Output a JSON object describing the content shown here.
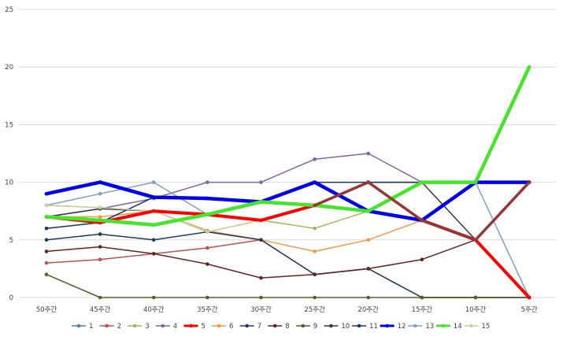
{
  "chart_data": {
    "type": "line",
    "categories": [
      "50주간",
      "45주간",
      "40주간",
      "35주간",
      "30주간",
      "25주간",
      "20주간",
      "15주간",
      "10주간",
      "5주간"
    ],
    "ylim": [
      0,
      25
    ],
    "yticks": [
      0,
      5,
      10,
      15,
      20,
      25
    ],
    "grid": true,
    "legend_position": "bottom",
    "series": [
      {
        "name": "1",
        "color": "#4f81bd",
        "width": 1.5,
        "values": [
          9,
          10,
          8.7,
          8.6,
          8.3,
          10,
          7.5,
          6.7,
          5,
          0
        ]
      },
      {
        "name": "2",
        "color": "#c0504d",
        "width": 1.5,
        "values": [
          3,
          3.3,
          3.8,
          4.3,
          5,
          2,
          2.5,
          0,
          0,
          0
        ]
      },
      {
        "name": "3",
        "color": "#9bbb59",
        "width": 1.5,
        "values": [
          8,
          7.8,
          7.5,
          5.7,
          6.7,
          6,
          7.5,
          10,
          10,
          20
        ]
      },
      {
        "name": "4",
        "color": "#8064a2",
        "width": 1.5,
        "values": [
          7,
          7.7,
          8.6,
          10,
          10,
          12,
          12.5,
          10,
          10,
          10
        ]
      },
      {
        "name": "5",
        "color": "#ff0000",
        "width": 4,
        "values": [
          7,
          6.5,
          7.5,
          7.2,
          6.7,
          8,
          7.5,
          6.7,
          5,
          0
        ]
      },
      {
        "name": "6",
        "color": "#f79646",
        "width": 1.5,
        "values": [
          7,
          7,
          7.5,
          5.8,
          5,
          4,
          5,
          6.7,
          5,
          0
        ]
      },
      {
        "name": "7",
        "color": "#1f3864",
        "width": 1.5,
        "values": [
          5,
          5.5,
          5,
          5.7,
          5,
          2,
          2.5,
          0,
          0,
          0
        ]
      },
      {
        "name": "8",
        "color": "#632423",
        "width": 1.5,
        "values": [
          4,
          4.4,
          3.8,
          2.9,
          1.7,
          2,
          2.5,
          3.3,
          5,
          10
        ]
      },
      {
        "name": "9",
        "color": "#4f6228",
        "width": 1.5,
        "values": [
          2,
          0,
          0,
          0,
          0,
          0,
          0,
          0,
          0,
          0
        ]
      },
      {
        "name": "10",
        "color": "#3f3151",
        "width": 1.5,
        "values": [
          7,
          7.7,
          7.5,
          7.2,
          6.7,
          8,
          10,
          10,
          5,
          10
        ]
      },
      {
        "name": "11",
        "color": "#17375e",
        "width": 1.5,
        "values": [
          6,
          6.5,
          8.7,
          8.6,
          8.3,
          10,
          10,
          10,
          10,
          10
        ]
      },
      {
        "name": "12",
        "color": "#0000ee",
        "width": 4.5,
        "values": [
          9,
          10,
          8.7,
          8.6,
          8.3,
          10,
          7.5,
          6.7,
          10,
          10
        ]
      },
      {
        "name": "13",
        "color": "#7f9fc4",
        "width": 1.5,
        "values": [
          8,
          9,
          10,
          7.2,
          8.3,
          8,
          7.5,
          10,
          10,
          0
        ]
      },
      {
        "name": "14",
        "color": "#44e52a",
        "width": 4.5,
        "values": [
          7,
          6.7,
          6.3,
          7.2,
          8.3,
          8,
          7.5,
          10,
          10,
          20
        ]
      },
      {
        "name": "15",
        "color": "#c4d79b",
        "width": 1.5,
        "values": [
          8,
          7.8,
          7.5,
          5.7,
          6.7,
          8,
          7.5,
          10,
          10,
          20
        ]
      }
    ],
    "overlays": [
      {
        "color": "#953735",
        "width": 3.5,
        "values": [
          null,
          null,
          null,
          null,
          null,
          8,
          10,
          6.7,
          5,
          10
        ]
      }
    ]
  }
}
